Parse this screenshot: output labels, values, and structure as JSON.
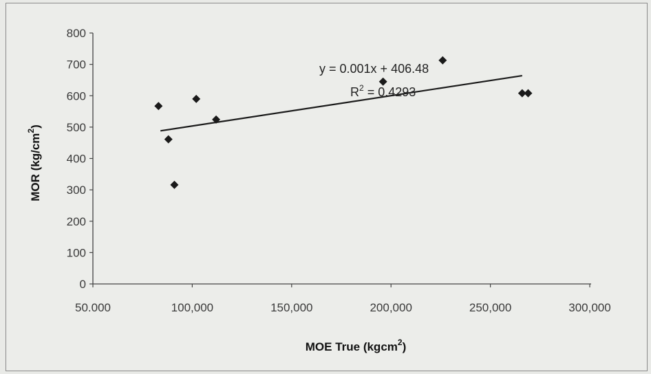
{
  "chart_data": {
    "type": "scatter",
    "xlabel": "MOE True (kgcm",
    "xlabel_sup": "2",
    "xlabel_end": ")",
    "ylabel": "MOR (kg/cm",
    "ylabel_sup": "2",
    "ylabel_end": ")",
    "xlim": [
      50000,
      300000
    ],
    "ylim": [
      0,
      800
    ],
    "x_ticks": [
      50000,
      100000,
      150000,
      200000,
      250000,
      300000
    ],
    "x_tick_labels": [
      "50.000",
      "100,000",
      "150,000",
      "200,000",
      "250,000",
      "300,000"
    ],
    "y_ticks": [
      0,
      100,
      200,
      300,
      400,
      500,
      600,
      700,
      800
    ],
    "y_tick_labels": [
      "0",
      "100",
      "200",
      "300",
      "400",
      "500",
      "600",
      "700",
      "800"
    ],
    "grid": false,
    "series": [
      {
        "points": [
          {
            "x": 83000,
            "y": 567
          },
          {
            "x": 88000,
            "y": 461
          },
          {
            "x": 91000,
            "y": 316
          },
          {
            "x": 102000,
            "y": 590
          },
          {
            "x": 112000,
            "y": 524
          },
          {
            "x": 196000,
            "y": 645
          },
          {
            "x": 226000,
            "y": 713
          },
          {
            "x": 266000,
            "y": 608
          },
          {
            "x": 269000,
            "y": 608
          }
        ]
      }
    ],
    "trendline": {
      "x_range": [
        84000,
        266000
      ],
      "y_range": [
        488,
        664
      ],
      "equation": "y = 0.001x + 406.48",
      "r2_prefix": "R",
      "r2_sup": "2",
      "r2_value": " = 0.4293"
    }
  }
}
